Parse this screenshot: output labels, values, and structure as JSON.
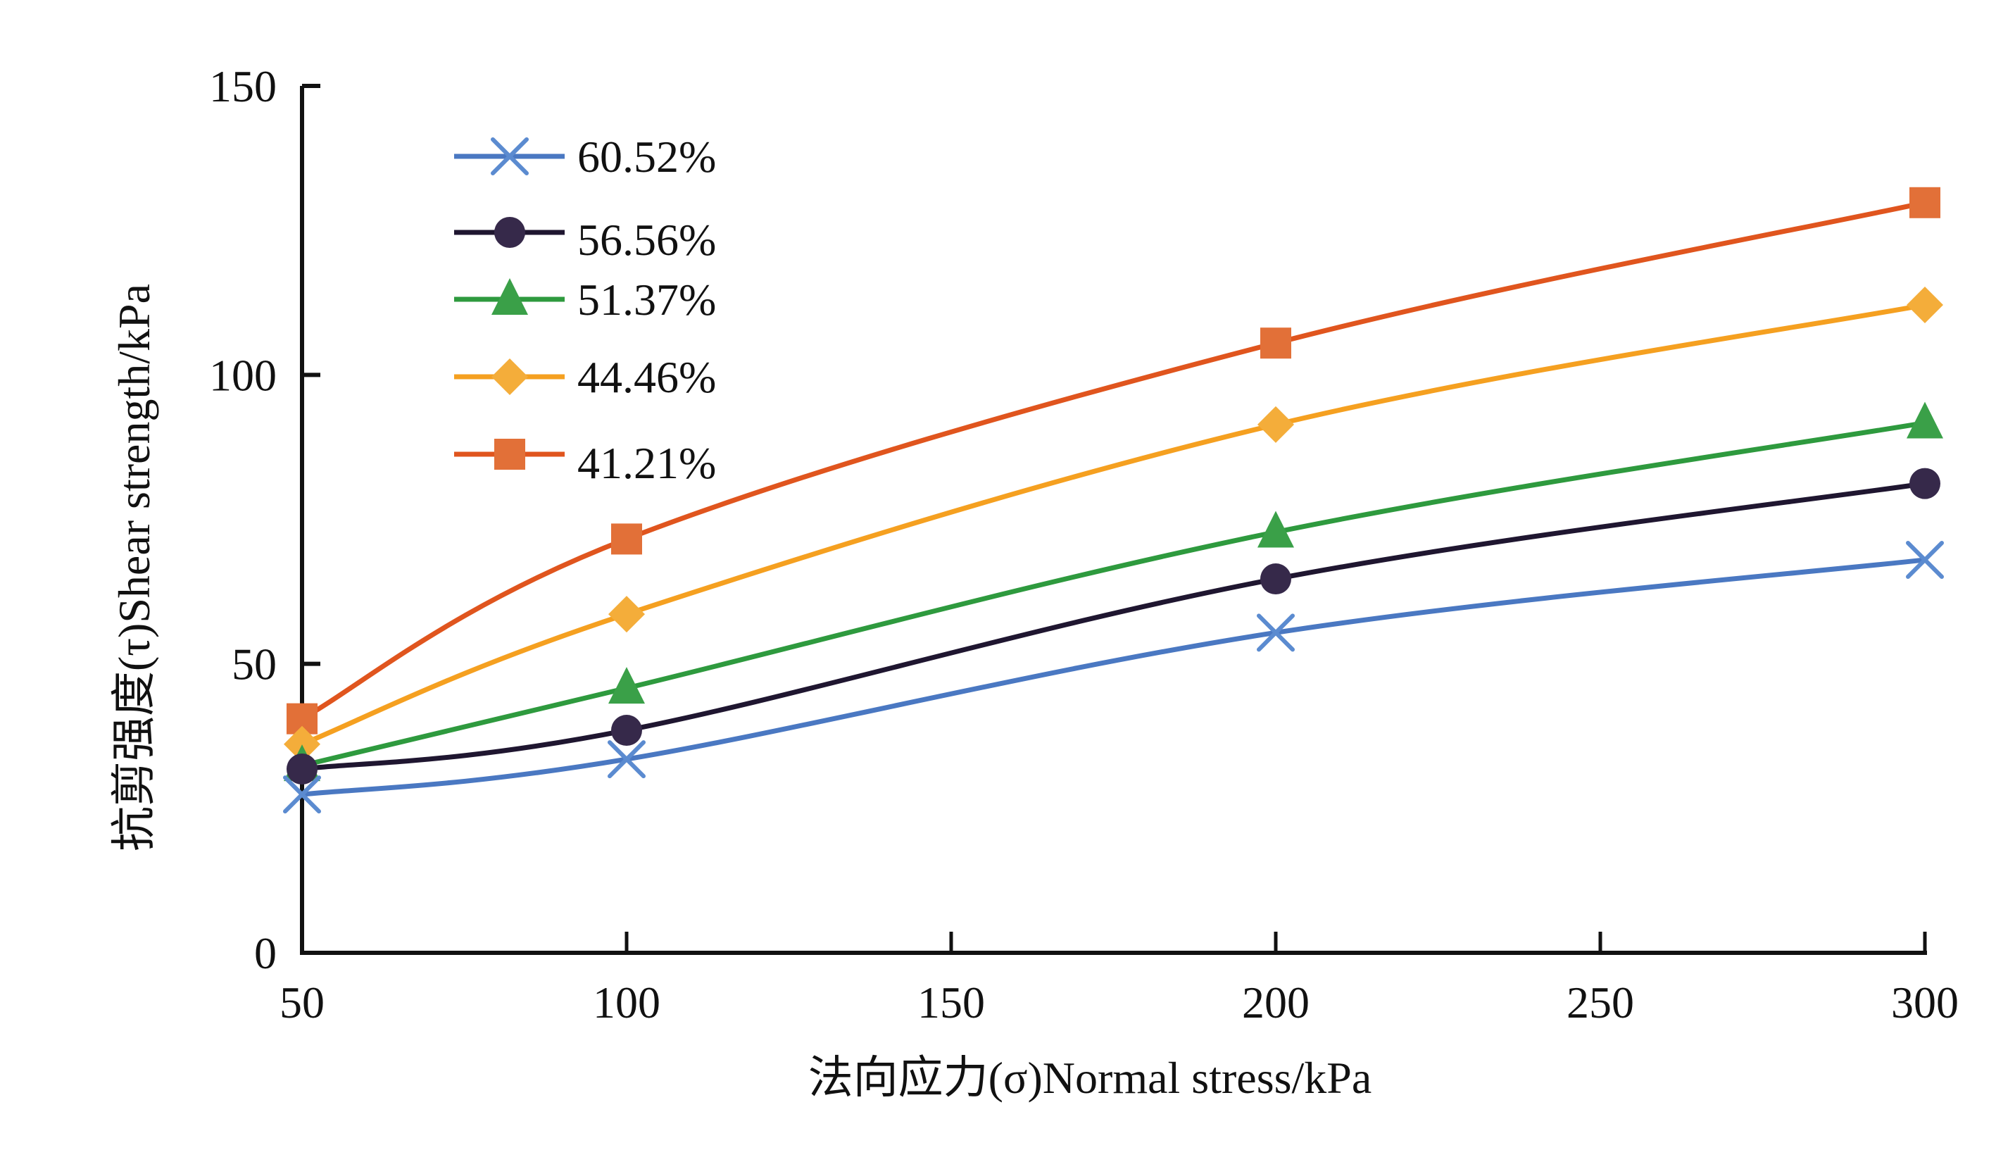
{
  "chart_data": {
    "type": "line",
    "title": "",
    "xlabel": "法向应力(σ)Normal stress/kPa",
    "ylabel": "抗剪强度(τ)Shear strength/kPa",
    "xlim": [
      50,
      300
    ],
    "ylim": [
      0,
      150
    ],
    "x_ticks": [
      50,
      100,
      150,
      200,
      250,
      300
    ],
    "y_ticks": [
      0,
      50,
      100,
      150
    ],
    "x_tick_labels": [
      "50",
      "100",
      "150",
      "200",
      "250",
      "300"
    ],
    "y_tick_labels": [
      "0",
      "50",
      "100",
      "150"
    ],
    "grid": false,
    "smooth": true,
    "legend_position": "top-left",
    "x": [
      50,
      100,
      200,
      300
    ],
    "series": [
      {
        "name": "60.52%",
        "marker": "x-cross",
        "color": "#4A78C2",
        "marker_color": "#5B8BD0",
        "values": [
          27.4,
          33.5,
          55.4,
          68.0
        ]
      },
      {
        "name": "56.56%",
        "marker": "circle",
        "color": "#1F1630",
        "marker_color": "#36294A",
        "values": [
          31.8,
          38.5,
          64.7,
          81.2
        ]
      },
      {
        "name": "51.37%",
        "marker": "triangle",
        "color": "#2E9A3E",
        "marker_color": "#3AA048",
        "values": [
          32.4,
          45.8,
          72.8,
          91.7
        ]
      },
      {
        "name": "44.46%",
        "marker": "diamond",
        "color": "#F5A020",
        "marker_color": "#F4AD3A",
        "values": [
          36.1,
          58.6,
          91.4,
          112.1
        ]
      },
      {
        "name": "41.21%",
        "marker": "square",
        "color": "#E0551E",
        "marker_color": "#E27038",
        "values": [
          40.5,
          71.6,
          105.5,
          129.8
        ]
      }
    ]
  }
}
